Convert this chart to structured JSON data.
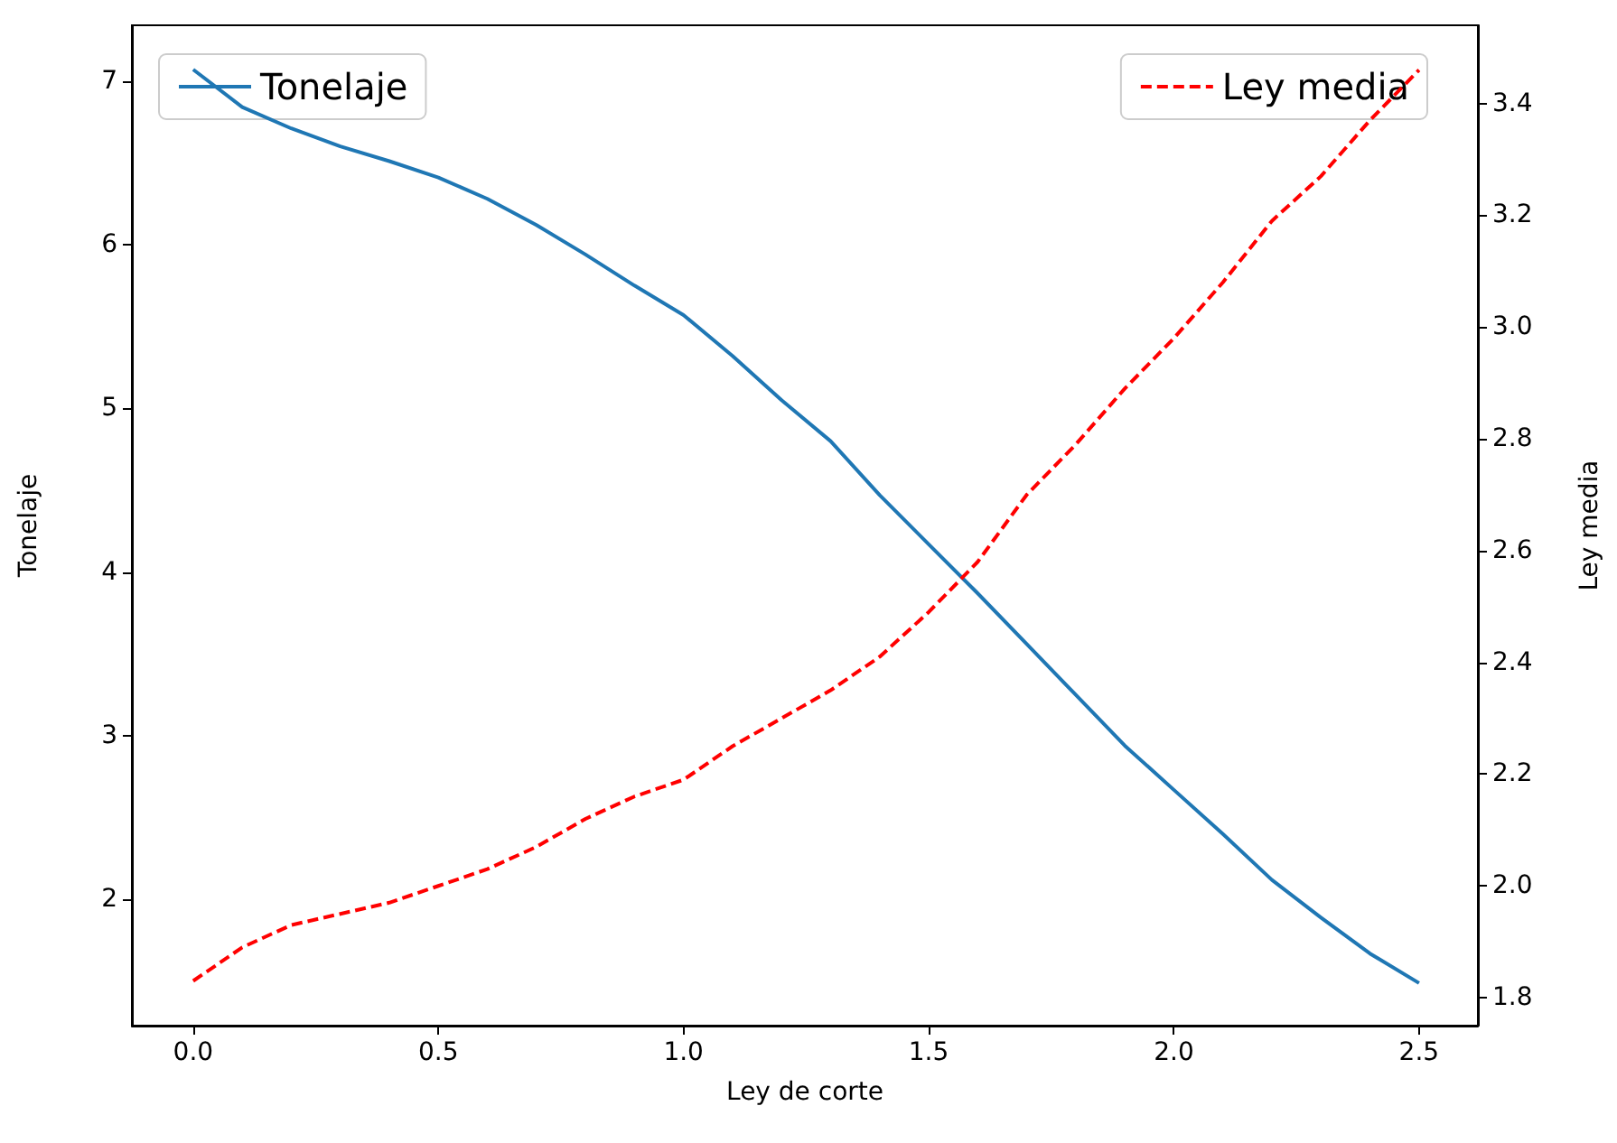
{
  "chart_data": {
    "type": "line",
    "xlabel": "Ley de corte",
    "ylabel": "Tonelaje",
    "y2label": "Ley media",
    "x": [
      0,
      0.1,
      0.2,
      0.3,
      0.4,
      0.5,
      0.6,
      0.7,
      0.8,
      0.9,
      1.0,
      1.1,
      1.2,
      1.3,
      1.4,
      1.5,
      1.6,
      1.7,
      1.8,
      1.9,
      2.0,
      2.1,
      2.2,
      2.3,
      2.4,
      2.5
    ],
    "series": [
      {
        "name": "Tonelaje",
        "color": "#1f77b4",
        "line_style": "solid",
        "values": [
          7.07,
          6.84,
          6.71,
          6.6,
          6.51,
          6.41,
          6.28,
          6.12,
          5.94,
          5.75,
          5.57,
          5.32,
          5.05,
          4.8,
          4.47,
          4.17,
          3.87,
          3.56,
          3.25,
          2.94,
          2.67,
          2.4,
          2.12,
          1.89,
          1.67,
          1.49
        ]
      },
      {
        "name": "Ley media",
        "color": "#ff0000",
        "line_style": "dashed",
        "axis": "y2",
        "values": [
          1.83,
          1.89,
          1.93,
          1.95,
          1.97,
          2.0,
          2.03,
          2.07,
          2.12,
          2.16,
          2.19,
          2.25,
          2.3,
          2.35,
          2.41,
          2.49,
          2.58,
          2.7,
          2.79,
          2.89,
          2.98,
          3.08,
          3.19,
          3.27,
          3.37,
          3.46
        ]
      }
    ],
    "xlim": [
      -0.125,
      2.62
    ],
    "xticks": [
      {
        "value": 0,
        "label": "0.0"
      },
      {
        "value": 0.5,
        "label": "0.5"
      },
      {
        "value": 1,
        "label": "1.0"
      },
      {
        "value": 1.5,
        "label": "1.5"
      },
      {
        "value": 2,
        "label": "2.0"
      },
      {
        "value": 2.5,
        "label": "2.5"
      }
    ],
    "ylim": [
      1.23,
      7.34
    ],
    "yticks": [
      2,
      3,
      4,
      5,
      6,
      7
    ],
    "y2lim": [
      1.75,
      3.54
    ],
    "y2ticks": [
      {
        "value": 1.8,
        "label": "1.8"
      },
      {
        "value": 2,
        "label": "2.0"
      },
      {
        "value": 2.2,
        "label": "2.2"
      },
      {
        "value": 2.4,
        "label": "2.4"
      },
      {
        "value": 2.6,
        "label": "2.6"
      },
      {
        "value": 2.8,
        "label": "2.8"
      },
      {
        "value": 3,
        "label": "3.0"
      },
      {
        "value": 3.2,
        "label": "3.2"
      },
      {
        "value": 3.4,
        "label": "3.4"
      }
    ],
    "grid": false,
    "legend": "top",
    "marker": "none"
  }
}
